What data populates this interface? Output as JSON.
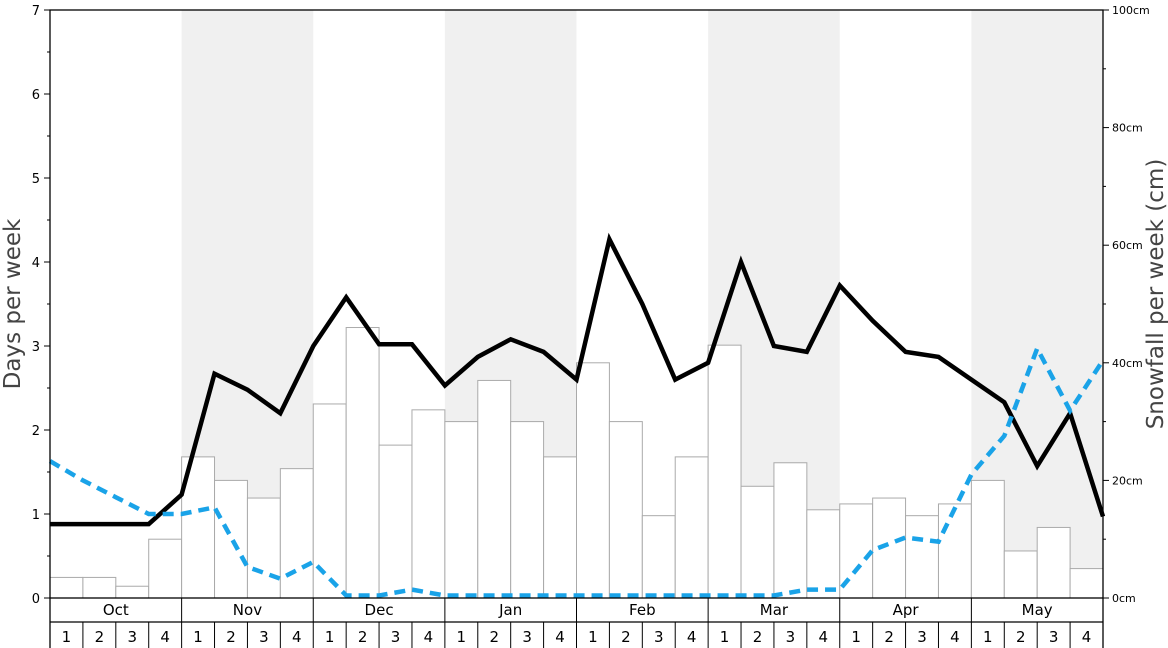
{
  "chart_data": {
    "type": "bar",
    "y_left_label": "Days per week",
    "y_right_label": "Snowfall per week (cm)",
    "y_left_ticks": [
      "0",
      "1",
      "2",
      "3",
      "4",
      "5",
      "6",
      "7"
    ],
    "y_right_ticks": [
      "0cm",
      "20cm",
      "40cm",
      "60cm",
      "80cm",
      "100cm"
    ],
    "ylim_left": [
      0,
      7
    ],
    "ylim_right": [
      0,
      100
    ],
    "months": [
      "Oct",
      "Nov",
      "Dec",
      "Jan",
      "Feb",
      "Mar",
      "Apr",
      "May"
    ],
    "week_labels": [
      "1",
      "2",
      "3",
      "4"
    ],
    "shaded_months": [
      "Nov",
      "Jan",
      "Mar",
      "May"
    ],
    "grid": false,
    "series": [
      {
        "kind": "bar",
        "axis": "right",
        "unit": "cm",
        "color": "#ffffff",
        "edge_color": "#aaaaaa",
        "values": [
          3.5,
          3.5,
          2,
          10,
          24,
          20,
          17,
          22,
          33,
          46,
          26,
          32,
          30,
          37,
          30,
          24,
          40,
          30,
          14,
          24,
          43,
          19,
          23,
          15,
          16,
          17,
          14,
          16,
          20,
          8,
          12,
          5
        ]
      },
      {
        "kind": "line",
        "axis": "left",
        "style": "solid",
        "color": "#000000",
        "values": [
          0.88,
          0.88,
          0.88,
          0.88,
          1.23,
          2.67,
          2.48,
          2.2,
          3.0,
          3.58,
          3.02,
          3.02,
          2.53,
          2.87,
          3.08,
          2.93,
          2.6,
          4.27,
          3.5,
          2.6,
          2.8,
          4.0,
          3.0,
          2.93,
          3.72,
          3.3,
          2.93,
          2.87,
          2.6,
          2.33,
          1.57,
          2.2,
          0.97
        ]
      },
      {
        "kind": "line",
        "axis": "left",
        "style": "dashed",
        "color": "#1aa3e8",
        "values": [
          1.63,
          1.4,
          1.2,
          1.0,
          1.0,
          1.08,
          0.37,
          0.23,
          0.43,
          0.03,
          0.03,
          0.1,
          0.03,
          0.03,
          0.03,
          0.03,
          0.03,
          0.03,
          0.03,
          0.03,
          0.03,
          0.03,
          0.03,
          0.1,
          0.1,
          0.57,
          0.72,
          0.67,
          1.47,
          1.93,
          2.97,
          2.23,
          2.83
        ]
      }
    ]
  }
}
